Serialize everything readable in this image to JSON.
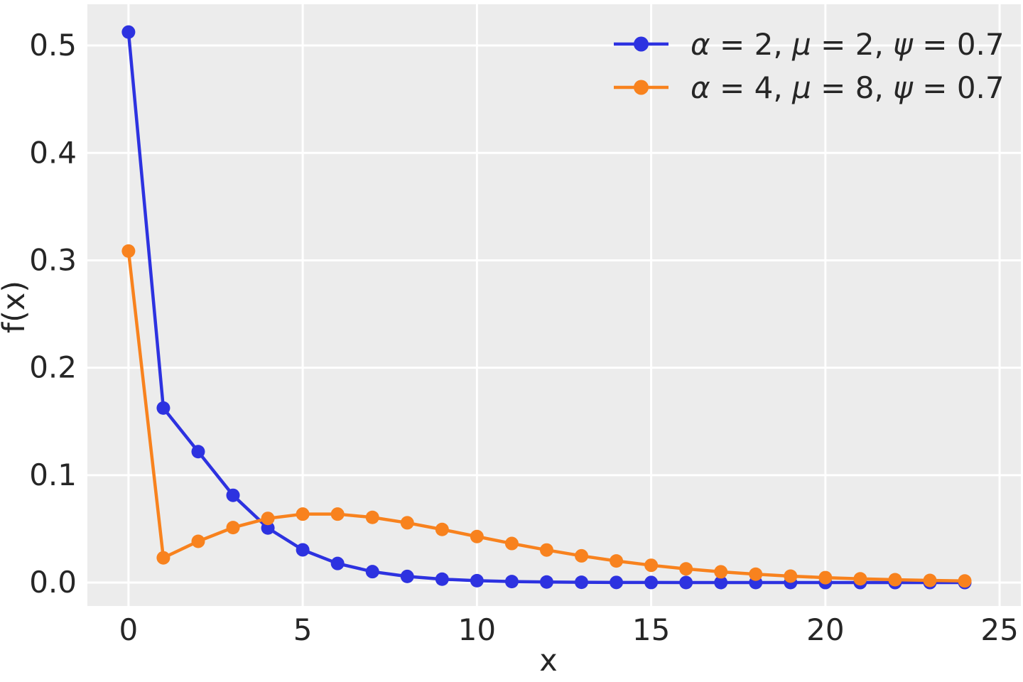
{
  "chart_data": {
    "type": "line",
    "title": "",
    "xlabel": "x",
    "ylabel": "f(x)",
    "x": [
      0,
      1,
      2,
      3,
      4,
      5,
      6,
      7,
      8,
      9,
      10,
      11,
      12,
      13,
      14,
      15,
      16,
      17,
      18,
      19,
      20,
      21,
      22,
      23,
      24
    ],
    "series": [
      {
        "name": "α = 2, μ = 2, ψ = 0.7",
        "color": "#2d32e0",
        "values": [
          0.5125,
          0.1625,
          0.12188,
          0.08125,
          0.05078,
          0.03047,
          0.01777,
          0.01016,
          0.00571,
          0.00317,
          0.00175,
          0.00095,
          0.00052,
          0.00028,
          0.00015,
          8e-05,
          4e-05,
          2e-05,
          1e-05,
          1e-05,
          0.0,
          0.0,
          0.0,
          0.0,
          0.0
        ]
      },
      {
        "name": "α = 4, μ = 8, ψ = 0.7",
        "color": "#f8821e",
        "values": [
          0.30864,
          0.02305,
          0.03841,
          0.05121,
          0.05975,
          0.06373,
          0.06373,
          0.0607,
          0.05564,
          0.04946,
          0.04286,
          0.03637,
          0.03031,
          0.02487,
          0.02013,
          0.0161,
          0.01275,
          0.01,
          0.00778,
          0.006,
          0.0046,
          0.00351,
          0.00266,
          0.002,
          0.0015
        ]
      }
    ],
    "xticks": [
      0,
      5,
      10,
      15,
      20,
      25
    ],
    "xtick_labels": [
      "0",
      "5",
      "10",
      "15",
      "20",
      "25"
    ],
    "yticks": [
      0.0,
      0.1,
      0.2,
      0.3,
      0.4,
      0.5
    ],
    "ytick_labels": [
      "0.0",
      "0.1",
      "0.2",
      "0.3",
      "0.4",
      "0.5"
    ],
    "xlim": [
      -1.18,
      25.61
    ],
    "ylim": [
      -0.0218,
      0.5384
    ],
    "grid": true,
    "legend_position": "upper right",
    "plot_bg_color": "#ececec",
    "grid_color": "#ffffff",
    "text_color": "#262626",
    "marker": "circle"
  }
}
